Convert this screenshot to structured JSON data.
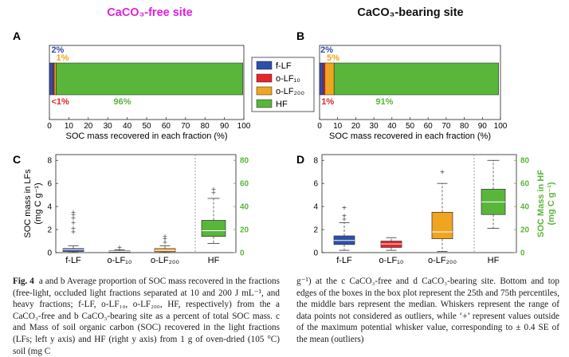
{
  "figure": {
    "site_left_title": "CaCO₃-free site",
    "site_right_title": "CaCO₃-bearing site",
    "panel_labels": [
      "A",
      "B",
      "C",
      "D"
    ],
    "colors": {
      "f_lf": "#2f4fa8",
      "o_lf10": "#e8232a",
      "o_lf200": "#f0a520",
      "hf": "#5ab53b",
      "title_left": "#e020e0",
      "axis_right": "#5ab53b"
    },
    "legend": [
      "f-LF",
      "o-LF₁₀",
      "o-LF₂₀₀",
      "HF"
    ]
  },
  "chart_data": [
    {
      "type": "bar",
      "panel": "A",
      "orientation": "horizontal-stacked",
      "categories": [
        "f-LF",
        "o-LF10",
        "o-LF200",
        "HF"
      ],
      "values": [
        2,
        0.5,
        1,
        96
      ],
      "xlabel": "SOC mass recovered in each fraction (%)",
      "xlim": [
        0,
        100
      ],
      "xticks": [
        0,
        10,
        20,
        30,
        40,
        50,
        60,
        70,
        80,
        90,
        100
      ],
      "labels_above": [
        {
          "text": "2%",
          "x": 1,
          "color": "#2f4fa8"
        },
        {
          "text": "1%",
          "x": 3.5,
          "color": "#f0a520"
        }
      ],
      "labels_below": [
        {
          "text": "<1%",
          "x": 1,
          "color": "#e8232a"
        },
        {
          "text": "96%",
          "x": 33,
          "color": "#5ab53b"
        }
      ]
    },
    {
      "type": "bar",
      "panel": "B",
      "orientation": "horizontal-stacked",
      "categories": [
        "f-LF",
        "o-LF10",
        "o-LF200",
        "HF"
      ],
      "values": [
        2,
        1,
        5,
        91
      ],
      "xlabel": "SOC mass recovered in each fraction (%)",
      "xlim": [
        0,
        100
      ],
      "xticks": [
        0,
        10,
        20,
        30,
        40,
        50,
        60,
        70,
        80,
        90,
        100
      ],
      "labels_above": [
        {
          "text": "2%",
          "x": 0.5,
          "color": "#2f4fa8"
        },
        {
          "text": "5%",
          "x": 4,
          "color": "#f0a520"
        }
      ],
      "labels_below": [
        {
          "text": "1%",
          "x": 1,
          "color": "#e8232a"
        },
        {
          "text": "91%",
          "x": 31,
          "color": "#5ab53b"
        }
      ]
    },
    {
      "type": "box",
      "panel": "C",
      "ylabel": "SOC mass in LFs\n(mg C g⁻¹)",
      "ylabel_right": "",
      "ylim": [
        0,
        8.5
      ],
      "yticks": [
        0,
        2,
        4,
        6,
        8
      ],
      "ylim_right": [
        0,
        85
      ],
      "yticks_right": [
        0,
        20,
        40,
        60,
        80
      ],
      "boxes": [
        {
          "name": "f-LF",
          "axis": "left",
          "q1": 0.1,
          "median": 0.25,
          "q3": 0.35,
          "whisker_low": 0.02,
          "whisker_high": 0.6,
          "outliers": [
            1.8,
            2.1,
            2.6,
            3.0,
            3.3,
            3.5
          ]
        },
        {
          "name": "o-LF₁₀",
          "axis": "left",
          "q1": 0.04,
          "median": 0.1,
          "q3": 0.15,
          "whisker_low": 0.01,
          "whisker_high": 0.25,
          "outliers": [
            0.45
          ]
        },
        {
          "name": "o-LF₂₀₀",
          "axis": "left",
          "q1": 0.08,
          "median": 0.2,
          "q3": 0.35,
          "whisker_low": 0.02,
          "whisker_high": 0.6,
          "outliers": [
            0.9,
            1.2,
            1.4
          ]
        },
        {
          "name": "HF",
          "axis": "right",
          "q1": 14,
          "median": 19,
          "q3": 28,
          "whisker_low": 8,
          "whisker_high": 47,
          "outliers": [
            52,
            55
          ]
        }
      ]
    },
    {
      "type": "box",
      "panel": "D",
      "ylabel": "",
      "ylabel_right": "SOC Mass in HF\n(mg C g⁻¹)",
      "ylim": [
        0,
        8.5
      ],
      "yticks": [
        0,
        2,
        4,
        6,
        8
      ],
      "ylim_right": [
        0,
        85
      ],
      "yticks_right": [
        0,
        20,
        40,
        60,
        80
      ],
      "boxes": [
        {
          "name": "f-LF",
          "axis": "left",
          "q1": 0.7,
          "median": 1.05,
          "q3": 1.45,
          "whisker_low": 0.2,
          "whisker_high": 2.6,
          "outliers": [
            2.9,
            3.2,
            3.9
          ]
        },
        {
          "name": "o-LF₁₀",
          "axis": "left",
          "q1": 0.45,
          "median": 0.75,
          "q3": 1.0,
          "whisker_low": 0.2,
          "whisker_high": 1.3,
          "outliers": []
        },
        {
          "name": "o-LF₂₀₀",
          "axis": "left",
          "q1": 1.2,
          "median": 1.8,
          "q3": 3.5,
          "whisker_low": 0.1,
          "whisker_high": 6.0,
          "outliers": [
            7.0
          ]
        },
        {
          "name": "HF",
          "axis": "right",
          "q1": 33,
          "median": 44,
          "q3": 55,
          "whisker_low": 21,
          "whisker_high": 80,
          "outliers": []
        }
      ]
    }
  ],
  "caption": {
    "left": "a and b Average proportion of SOC mass recovered in the fractions (free-light, occluded light fractions separated at 10 and 200 J mL⁻¹, and heavy fractions; f-LF, o-LF₁₀, o-LF₂₀₀, HF, respectively) from the a CaCO₃-free and b CaCO₃-bearing site as a percent of total SOC mass. c and Mass of soil organic carbon (SOC) recovered in the light fractions (LFs; left y axis) and HF (right y axis) from 1 g of oven-dried (105 °C) soil (mg C",
    "left_lead": "Fig. 4",
    "right": "g⁻¹) at the c CaCO₃-free and d CaCO₃-bearing site. Bottom and top edges of the boxes in the box plot represent the 25th and 75th percentiles, the middle bars represent the median. Whiskers represent the range of data points not considered as outliers, while ‘+’ represent values outside of the maximum potential whisker value, corresponding to ± 0.4 SE of the mean (outliers)"
  }
}
